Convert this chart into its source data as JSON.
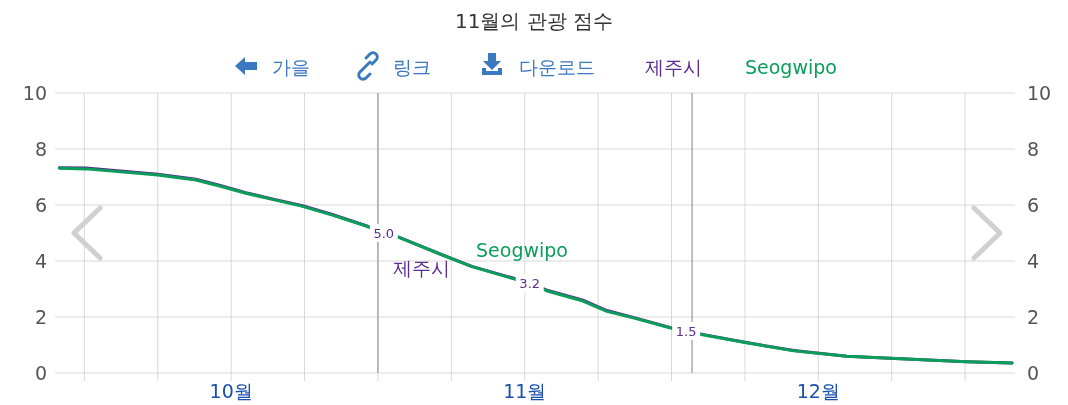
{
  "chart_data": {
    "type": "line",
    "title": "11월의 관광 점수",
    "annotations": [
      "가을",
      "링크",
      "다운로드",
      "제주시",
      "Seogwipo"
    ],
    "x": [
      9.415,
      9.505,
      9.75,
      9.88,
      9.96,
      10.05,
      10.14,
      10.24,
      10.345,
      10.46,
      10.52,
      10.57,
      10.71,
      10.82,
      10.957,
      11.017,
      11.076,
      11.196,
      11.28,
      11.376,
      11.51,
      11.55,
      11.61,
      11.76,
      11.917,
      12.097,
      12.3,
      12.505,
      12.66
    ],
    "series": [
      {
        "name": "제주시",
        "color": "#5b2d91",
        "values": [
          7.33,
          7.32,
          7.1,
          6.92,
          6.71,
          6.44,
          6.22,
          5.98,
          5.66,
          5.26,
          5.0,
          4.85,
          4.26,
          3.81,
          3.4,
          3.2,
          2.96,
          2.61,
          2.23,
          1.97,
          1.58,
          1.5,
          1.37,
          1.08,
          0.8,
          0.6,
          0.5,
          0.4,
          0.36
        ],
        "value_labels": [
          null,
          null,
          null,
          null,
          null,
          null,
          null,
          null,
          null,
          null,
          "5.0",
          null,
          null,
          null,
          null,
          "3.2",
          null,
          null,
          null,
          null,
          null,
          "1.5",
          null,
          null,
          null,
          null,
          null,
          null,
          null
        ]
      },
      {
        "name": "Seogwipo",
        "color": "#0a9e5a",
        "values": [
          7.31,
          7.29,
          7.07,
          6.89,
          6.68,
          6.42,
          6.2,
          5.96,
          5.64,
          5.25,
          5.0,
          4.85,
          4.25,
          3.8,
          3.38,
          3.2,
          2.93,
          2.58,
          2.2,
          1.95,
          1.57,
          1.5,
          1.36,
          1.07,
          0.79,
          0.6,
          0.5,
          0.4,
          0.36
        ]
      }
    ],
    "xlim": [
      9.4,
      12.67
    ],
    "xticks": [
      {
        "value": 9.5,
        "label": null
      },
      {
        "value": 9.75,
        "label": null
      },
      {
        "value": 10,
        "label": "10월"
      },
      {
        "value": 10.25,
        "label": null
      },
      {
        "value": 10.5,
        "label": null
      },
      {
        "value": 10.75,
        "label": null
      },
      {
        "value": 11,
        "label": "11월"
      },
      {
        "value": 11.25,
        "label": null
      },
      {
        "value": 11.5,
        "label": null
      },
      {
        "value": 11.75,
        "label": null
      },
      {
        "value": 12,
        "label": "12월"
      },
      {
        "value": 12.25,
        "label": null
      },
      {
        "value": 12.5,
        "label": null
      }
    ],
    "ylim": [
      0,
      10
    ],
    "yticks": [
      0,
      2,
      4,
      6,
      8,
      10
    ],
    "y2lim": [
      0,
      10
    ],
    "y2ticks": [
      0,
      2,
      4,
      6,
      8,
      10
    ],
    "ref_lines": [
      {
        "axis": "x",
        "value": 10.5,
        "color": "#999999"
      },
      {
        "axis": "x",
        "value": 11.57,
        "color": "#999999"
      }
    ],
    "grid": true,
    "legend": "top",
    "marker": "none",
    "line_style": "solid"
  }
}
